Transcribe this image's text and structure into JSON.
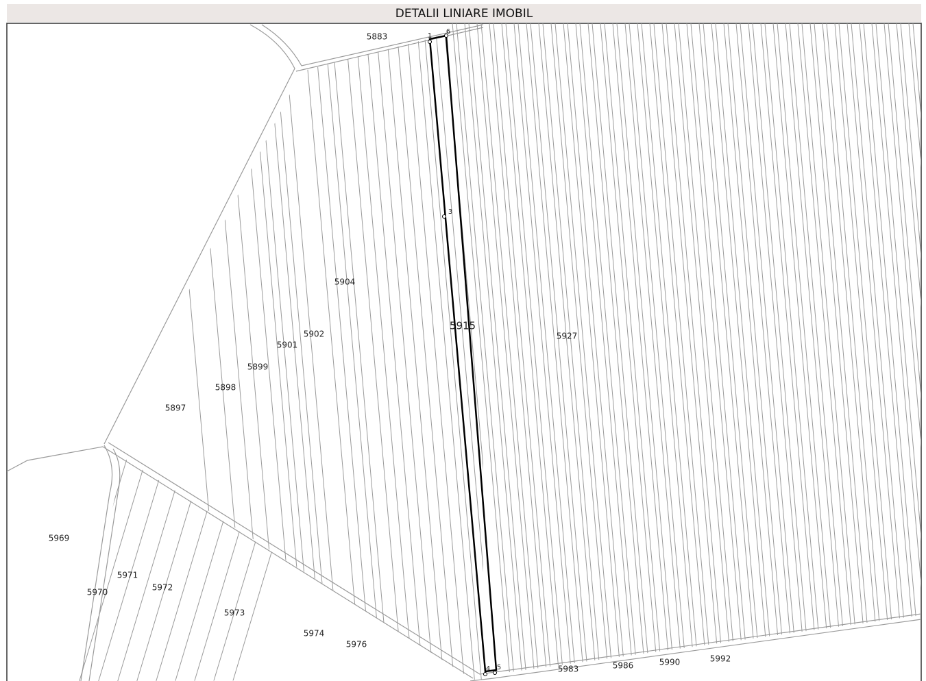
{
  "header": {
    "title": "DETALII LINIARE IMOBIL"
  },
  "map": {
    "highlight": {
      "label": "5915"
    },
    "points": [
      "1",
      "6",
      "3",
      "4",
      "5"
    ],
    "parcels": [
      "5883",
      "5904",
      "5902",
      "5901",
      "5899",
      "5898",
      "5897",
      "5927",
      "5969",
      "5971",
      "5970",
      "5972",
      "5973",
      "5974",
      "5976",
      "5983",
      "5986",
      "5990",
      "5992"
    ]
  }
}
